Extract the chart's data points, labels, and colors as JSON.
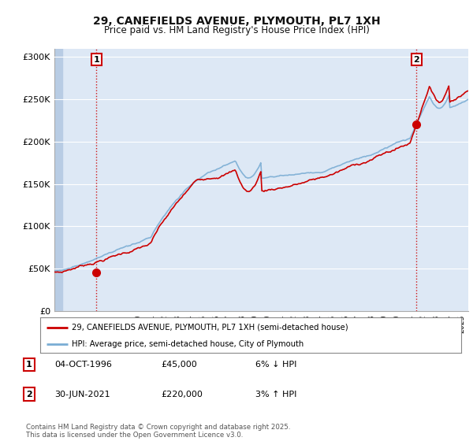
{
  "title": "29, CANEFIELDS AVENUE, PLYMOUTH, PL7 1XH",
  "subtitle": "Price paid vs. HM Land Registry's House Price Index (HPI)",
  "ylim": [
    0,
    310000
  ],
  "yticks": [
    0,
    50000,
    100000,
    150000,
    200000,
    250000,
    300000
  ],
  "ytick_labels": [
    "£0",
    "£50K",
    "£100K",
    "£150K",
    "£200K",
    "£250K",
    "£300K"
  ],
  "background_color": "#ffffff",
  "plot_bg_color": "#dde8f5",
  "grid_color": "#ffffff",
  "line1_color": "#cc0000",
  "line2_color": "#7aadd4",
  "point1_date": 1996.75,
  "point1_value": 45000,
  "point2_date": 2021.5,
  "point2_value": 220000,
  "annotation1": "1",
  "annotation2": "2",
  "legend_line1": "29, CANEFIELDS AVENUE, PLYMOUTH, PL7 1XH (semi-detached house)",
  "legend_line2": "HPI: Average price, semi-detached house, City of Plymouth",
  "table_row1_num": "1",
  "table_row1_date": "04-OCT-1996",
  "table_row1_price": "£45,000",
  "table_row1_hpi": "6% ↓ HPI",
  "table_row2_num": "2",
  "table_row2_date": "30-JUN-2021",
  "table_row2_price": "£220,000",
  "table_row2_hpi": "3% ↑ HPI",
  "footnote": "Contains HM Land Registry data © Crown copyright and database right 2025.\nThis data is licensed under the Open Government Licence v3.0.",
  "xmin": 1993.5,
  "xmax": 2025.5,
  "hatch_end": 1994.2
}
